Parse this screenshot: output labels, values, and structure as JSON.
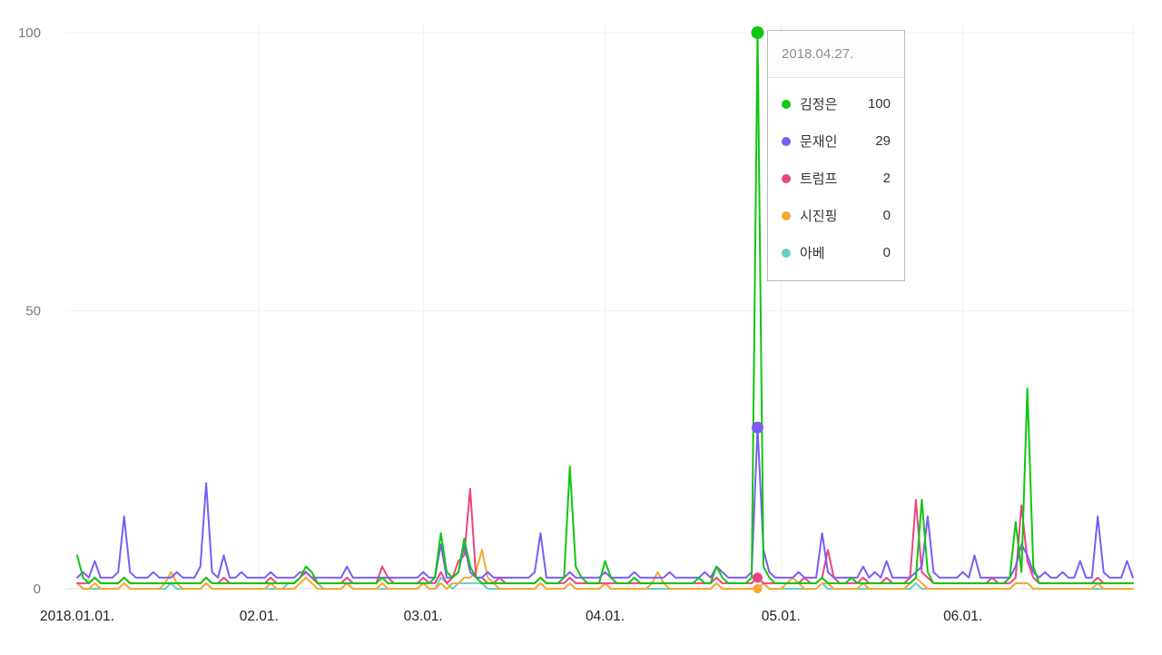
{
  "chart_data": {
    "type": "line",
    "title": "",
    "grid": true,
    "x_axis": {
      "start_date": "2018.01.01.",
      "step_days": 1,
      "total_days": 181,
      "tick_labels": [
        "2018.01.01.",
        "02.01.",
        "03.01.",
        "04.01.",
        "05.01.",
        "06.01."
      ],
      "tick_day_indices": [
        0,
        31,
        59,
        90,
        120,
        151
      ]
    },
    "y_axis": {
      "tick_labels": [
        "0",
        "50",
        "100"
      ],
      "ticks": [
        0,
        50,
        100
      ],
      "range": [
        0,
        100
      ]
    },
    "series": [
      {
        "name": "김정은",
        "color": "#10c610",
        "values": [
          6,
          2,
          1,
          2,
          1,
          1,
          1,
          1,
          2,
          1,
          1,
          1,
          1,
          1,
          1,
          1,
          1,
          1,
          1,
          1,
          1,
          1,
          2,
          1,
          1,
          1,
          1,
          1,
          1,
          1,
          1,
          1,
          1,
          1,
          1,
          1,
          1,
          1,
          2,
          4,
          3,
          1,
          1,
          1,
          1,
          1,
          1,
          1,
          1,
          1,
          1,
          1,
          2,
          1,
          1,
          1,
          1,
          1,
          1,
          1,
          1,
          2,
          10,
          3,
          2,
          3,
          9,
          4,
          2,
          1,
          1,
          1,
          1,
          1,
          1,
          1,
          1,
          1,
          1,
          2,
          1,
          1,
          1,
          2,
          22,
          4,
          2,
          1,
          1,
          1,
          5,
          2,
          1,
          1,
          1,
          2,
          1,
          1,
          1,
          1,
          1,
          1,
          1,
          1,
          1,
          1,
          2,
          1,
          1,
          4,
          2,
          1,
          1,
          1,
          1,
          2,
          100,
          4,
          2,
          1,
          1,
          1,
          1,
          1,
          1,
          1,
          1,
          2,
          1,
          1,
          1,
          1,
          2,
          1,
          1,
          1,
          1,
          1,
          1,
          1,
          1,
          1,
          1,
          2,
          16,
          3,
          1,
          1,
          1,
          1,
          1,
          1,
          1,
          1,
          1,
          1,
          1,
          1,
          1,
          2,
          12,
          3,
          36,
          4,
          1,
          1,
          1,
          1,
          1,
          1,
          1,
          1,
          1,
          1,
          1,
          1,
          1,
          1,
          1,
          1,
          1
        ]
      },
      {
        "name": "문재인",
        "color": "#7c5cf4",
        "values": [
          2,
          3,
          2,
          5,
          2,
          2,
          2,
          3,
          13,
          3,
          2,
          2,
          2,
          3,
          2,
          2,
          2,
          3,
          2,
          2,
          2,
          4,
          19,
          3,
          2,
          6,
          2,
          2,
          3,
          2,
          2,
          2,
          2,
          3,
          2,
          2,
          2,
          2,
          3,
          3,
          2,
          2,
          2,
          2,
          2,
          2,
          4,
          2,
          2,
          2,
          2,
          2,
          2,
          2,
          2,
          2,
          2,
          2,
          2,
          3,
          2,
          2,
          8,
          2,
          2,
          3,
          8,
          3,
          2,
          2,
          3,
          2,
          2,
          2,
          2,
          2,
          2,
          2,
          3,
          10,
          2,
          2,
          2,
          2,
          3,
          2,
          2,
          2,
          2,
          2,
          3,
          2,
          2,
          2,
          2,
          3,
          2,
          2,
          2,
          2,
          2,
          3,
          2,
          2,
          2,
          2,
          2,
          3,
          2,
          4,
          3,
          2,
          2,
          2,
          2,
          3,
          29,
          7,
          3,
          2,
          2,
          2,
          2,
          3,
          2,
          2,
          2,
          10,
          3,
          2,
          2,
          2,
          2,
          2,
          4,
          2,
          3,
          2,
          5,
          2,
          2,
          2,
          2,
          3,
          4,
          13,
          3,
          2,
          2,
          2,
          2,
          3,
          2,
          6,
          2,
          2,
          2,
          2,
          2,
          2,
          4,
          8,
          6,
          3,
          2,
          3,
          2,
          2,
          3,
          2,
          2,
          5,
          2,
          2,
          13,
          3,
          2,
          2,
          2,
          5,
          2
        ]
      },
      {
        "name": "트럼프",
        "color": "#e84683",
        "values": [
          1,
          1,
          1,
          2,
          1,
          1,
          1,
          1,
          2,
          1,
          1,
          1,
          1,
          1,
          1,
          1,
          1,
          1,
          1,
          1,
          1,
          1,
          2,
          1,
          1,
          2,
          1,
          1,
          1,
          1,
          1,
          1,
          1,
          2,
          1,
          1,
          1,
          1,
          2,
          3,
          2,
          1,
          1,
          1,
          1,
          1,
          2,
          1,
          1,
          1,
          1,
          1,
          4,
          2,
          1,
          1,
          1,
          1,
          1,
          2,
          1,
          1,
          3,
          1,
          2,
          5,
          6,
          18,
          2,
          2,
          1,
          1,
          2,
          1,
          1,
          1,
          1,
          1,
          1,
          2,
          1,
          1,
          1,
          1,
          2,
          1,
          1,
          1,
          1,
          1,
          1,
          1,
          1,
          1,
          1,
          1,
          1,
          1,
          1,
          1,
          1,
          1,
          1,
          1,
          1,
          1,
          1,
          1,
          1,
          2,
          1,
          1,
          1,
          1,
          1,
          1,
          2,
          1,
          1,
          1,
          1,
          1,
          1,
          1,
          2,
          1,
          1,
          2,
          7,
          2,
          1,
          1,
          1,
          1,
          2,
          1,
          1,
          1,
          2,
          1,
          1,
          1,
          2,
          16,
          3,
          2,
          1,
          1,
          1,
          1,
          1,
          1,
          1,
          1,
          1,
          1,
          2,
          1,
          1,
          1,
          2,
          15,
          5,
          2,
          1,
          1,
          1,
          1,
          1,
          1,
          1,
          1,
          1,
          1,
          2,
          1,
          1,
          1,
          1,
          1,
          1
        ]
      },
      {
        "name": "시진핑",
        "color": "#f7a832",
        "values": [
          1,
          0,
          0,
          1,
          0,
          0,
          0,
          0,
          1,
          0,
          0,
          0,
          0,
          0,
          0,
          1,
          3,
          1,
          0,
          0,
          0,
          0,
          1,
          0,
          0,
          0,
          0,
          0,
          0,
          0,
          0,
          0,
          0,
          1,
          0,
          0,
          0,
          0,
          1,
          2,
          1,
          0,
          0,
          0,
          0,
          0,
          1,
          0,
          0,
          0,
          0,
          0,
          1,
          0,
          0,
          0,
          0,
          0,
          0,
          1,
          0,
          0,
          1,
          0,
          1,
          1,
          2,
          2,
          3,
          7,
          2,
          1,
          0,
          0,
          0,
          0,
          0,
          0,
          0,
          1,
          0,
          0,
          0,
          0,
          1,
          0,
          0,
          0,
          0,
          0,
          1,
          0,
          0,
          0,
          0,
          0,
          0,
          0,
          1,
          3,
          1,
          0,
          0,
          0,
          0,
          0,
          0,
          0,
          0,
          1,
          0,
          0,
          0,
          0,
          0,
          0,
          0,
          1,
          0,
          0,
          0,
          1,
          2,
          1,
          0,
          0,
          0,
          1,
          1,
          0,
          0,
          0,
          0,
          0,
          1,
          0,
          0,
          0,
          0,
          0,
          0,
          0,
          1,
          2,
          1,
          0,
          0,
          0,
          0,
          0,
          0,
          0,
          0,
          0,
          0,
          0,
          0,
          0,
          0,
          0,
          1,
          1,
          1,
          0,
          0,
          0,
          0,
          0,
          0,
          0,
          0,
          0,
          0,
          0,
          1,
          0,
          0,
          0,
          0,
          0,
          0
        ]
      },
      {
        "name": "아베",
        "color": "#67cfc4",
        "values": [
          1,
          0,
          0,
          0,
          0,
          0,
          0,
          0,
          1,
          0,
          0,
          0,
          0,
          0,
          0,
          0,
          1,
          0,
          0,
          0,
          0,
          0,
          1,
          0,
          0,
          0,
          0,
          0,
          0,
          0,
          0,
          0,
          0,
          0,
          0,
          0,
          1,
          1,
          2,
          3,
          2,
          1,
          0,
          0,
          0,
          0,
          1,
          0,
          0,
          0,
          0,
          0,
          0,
          0,
          0,
          0,
          0,
          0,
          0,
          1,
          0,
          0,
          2,
          1,
          0,
          1,
          1,
          1,
          1,
          1,
          0,
          0,
          0,
          0,
          0,
          0,
          0,
          0,
          0,
          1,
          0,
          0,
          0,
          0,
          1,
          0,
          0,
          0,
          0,
          0,
          1,
          0,
          0,
          0,
          0,
          0,
          0,
          0,
          0,
          0,
          0,
          0,
          0,
          0,
          0,
          0,
          0,
          0,
          0,
          1,
          0,
          0,
          0,
          0,
          0,
          0,
          0,
          1,
          0,
          0,
          0,
          0,
          0,
          0,
          0,
          0,
          0,
          1,
          0,
          0,
          0,
          0,
          0,
          0,
          0,
          0,
          0,
          0,
          0,
          0,
          0,
          0,
          0,
          1,
          0,
          0,
          0,
          0,
          0,
          0,
          0,
          0,
          0,
          0,
          0,
          0,
          0,
          0,
          0,
          0,
          1,
          1,
          1,
          0,
          0,
          0,
          0,
          0,
          0,
          0,
          0,
          0,
          0,
          0,
          0,
          0,
          0,
          0,
          0,
          0,
          0
        ]
      }
    ]
  },
  "tooltip": {
    "date": "2018.04.27.",
    "day_index": 116,
    "rows": [
      {
        "name": "김정은",
        "value": 100,
        "color": "#10c610"
      },
      {
        "name": "문재인",
        "value": 29,
        "color": "#7c5cf4"
      },
      {
        "name": "트럼프",
        "value": 2,
        "color": "#e84683"
      },
      {
        "name": "시진핑",
        "value": 0,
        "color": "#f7a832"
      },
      {
        "name": "아베",
        "value": 0,
        "color": "#67cfc4"
      }
    ]
  }
}
